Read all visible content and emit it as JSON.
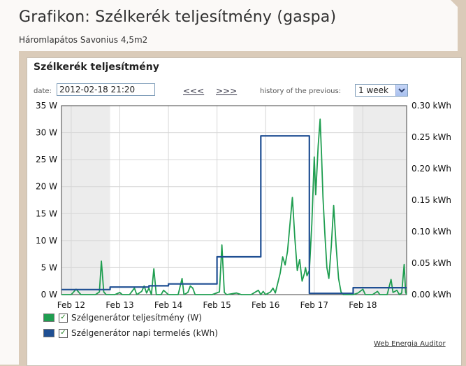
{
  "page": {
    "title": "Grafikon: Szélkerék teljesítmény (gaspa)",
    "subtitle": "Háromlapátos Savonius 4,5m2"
  },
  "panel": {
    "title": "Szélkerék teljesítmény",
    "date_label": "date:",
    "date_value": "2012-02-18 21:20",
    "prev_link": "<<<",
    "next_link": ">>>",
    "history_label": "history of the previous:",
    "history_selected": "1 week",
    "footer_link": "Web Energia Auditor"
  },
  "legend": [
    {
      "label": "Szélgenerátor teljesítmény (W)",
      "color": "#1f9e50"
    },
    {
      "label": "Szélgenerátor napi termelés (kWh)",
      "color": "#1f4f93"
    }
  ],
  "chart_data": {
    "type": "line",
    "x_ticks": [
      "Feb 12",
      "Feb 13",
      "Feb 14",
      "Feb 15",
      "Feb 16",
      "Feb 17",
      "Feb 18"
    ],
    "xlim_days": [
      11.8,
      18.9
    ],
    "y_left": {
      "ticks": [
        "0 W",
        "5 W",
        "10 W",
        "15 W",
        "20 W",
        "25 W",
        "30 W",
        "35 W"
      ],
      "lim": [
        0,
        35
      ]
    },
    "y_right": {
      "ticks": [
        "0.00 kWh",
        "0.05 kWh",
        "0.10 kWh",
        "0.15 kWh",
        "0.20 kWh",
        "0.25 kWh",
        "0.30 kWh"
      ],
      "lim": [
        0,
        0.3
      ]
    },
    "shaded_days": [
      [
        11.8,
        12.8
      ],
      [
        17.8,
        18.9
      ]
    ],
    "series": [
      {
        "name": "Szélgenerátor teljesítmény (W)",
        "axis": "left",
        "color": "#1f9e50",
        "points": [
          [
            11.8,
            0
          ],
          [
            12.0,
            0
          ],
          [
            12.1,
            1
          ],
          [
            12.2,
            0
          ],
          [
            12.5,
            0
          ],
          [
            12.58,
            0.5
          ],
          [
            12.62,
            6.2
          ],
          [
            12.67,
            0.5
          ],
          [
            12.72,
            0
          ],
          [
            12.9,
            0
          ],
          [
            13.0,
            0.4
          ],
          [
            13.05,
            0
          ],
          [
            13.2,
            0
          ],
          [
            13.3,
            1.2
          ],
          [
            13.35,
            0
          ],
          [
            13.45,
            0.6
          ],
          [
            13.5,
            1.6
          ],
          [
            13.55,
            0.3
          ],
          [
            13.6,
            1.2
          ],
          [
            13.65,
            0
          ],
          [
            13.7,
            4.8
          ],
          [
            13.75,
            0
          ],
          [
            13.85,
            0
          ],
          [
            13.9,
            0.8
          ],
          [
            14.0,
            0
          ],
          [
            14.2,
            0
          ],
          [
            14.28,
            3
          ],
          [
            14.32,
            0
          ],
          [
            14.4,
            0.4
          ],
          [
            14.45,
            1.6
          ],
          [
            14.5,
            1.2
          ],
          [
            14.55,
            0
          ],
          [
            14.9,
            0
          ],
          [
            15.05,
            0.5
          ],
          [
            15.1,
            9.2
          ],
          [
            15.15,
            0.4
          ],
          [
            15.2,
            0
          ],
          [
            15.4,
            0.3
          ],
          [
            15.5,
            0
          ],
          [
            15.7,
            0
          ],
          [
            15.85,
            0.8
          ],
          [
            15.9,
            0
          ],
          [
            15.95,
            0.6
          ],
          [
            16.0,
            0
          ],
          [
            16.1,
            0.5
          ],
          [
            16.15,
            1.2
          ],
          [
            16.2,
            0.3
          ],
          [
            16.3,
            4
          ],
          [
            16.35,
            7
          ],
          [
            16.4,
            5.5
          ],
          [
            16.45,
            8
          ],
          [
            16.55,
            18
          ],
          [
            16.6,
            10.5
          ],
          [
            16.65,
            4.5
          ],
          [
            16.7,
            6.5
          ],
          [
            16.75,
            2.5
          ],
          [
            16.8,
            4
          ],
          [
            16.82,
            5
          ],
          [
            16.85,
            3.5
          ],
          [
            16.9,
            4.5
          ],
          [
            16.95,
            13
          ],
          [
            17.0,
            25.5
          ],
          [
            17.03,
            18.5
          ],
          [
            17.08,
            27.5
          ],
          [
            17.12,
            32.5
          ],
          [
            17.15,
            26
          ],
          [
            17.18,
            18
          ],
          [
            17.22,
            11
          ],
          [
            17.26,
            5
          ],
          [
            17.3,
            3
          ],
          [
            17.35,
            9
          ],
          [
            17.4,
            16.5
          ],
          [
            17.45,
            9
          ],
          [
            17.5,
            3
          ],
          [
            17.55,
            0.5
          ],
          [
            17.6,
            0
          ],
          [
            17.8,
            0
          ],
          [
            17.9,
            0.3
          ],
          [
            18.0,
            1
          ],
          [
            18.05,
            0
          ],
          [
            18.2,
            0
          ],
          [
            18.3,
            0.6
          ],
          [
            18.35,
            0
          ],
          [
            18.5,
            0
          ],
          [
            18.58,
            2.8
          ],
          [
            18.62,
            0.4
          ],
          [
            18.7,
            0.8
          ],
          [
            18.75,
            0
          ],
          [
            18.8,
            0.3
          ],
          [
            18.85,
            5.6
          ],
          [
            18.88,
            0.4
          ],
          [
            18.9,
            0
          ]
        ]
      },
      {
        "name": "Szélgenerátor napi termelés (kWh)",
        "axis": "right",
        "color": "#1f4f93",
        "points": [
          [
            11.8,
            0.008
          ],
          [
            12.8,
            0.008
          ],
          [
            12.8,
            0.012
          ],
          [
            13.6,
            0.012
          ],
          [
            13.6,
            0.014
          ],
          [
            14.0,
            0.014
          ],
          [
            14.0,
            0.017
          ],
          [
            15.0,
            0.017
          ],
          [
            15.0,
            0.06
          ],
          [
            15.9,
            0.06
          ],
          [
            15.9,
            0.252
          ],
          [
            16.9,
            0.252
          ],
          [
            16.9,
            0.002
          ],
          [
            17.8,
            0.002
          ],
          [
            17.8,
            0.011
          ],
          [
            18.9,
            0.011
          ]
        ]
      }
    ]
  }
}
